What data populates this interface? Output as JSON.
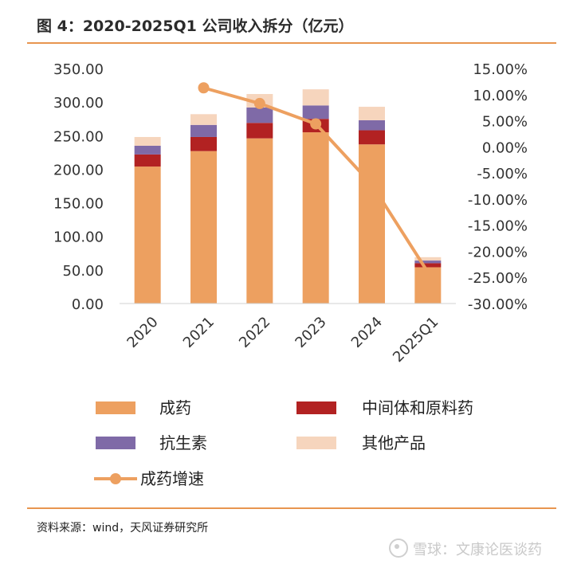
{
  "header": {
    "title": "图 4：2020-2025Q1 公司收入拆分（亿元）"
  },
  "footer": {
    "source": "资料来源：wind，天风证券研究所",
    "watermark": "雪球：文康论医谈药"
  },
  "colors": {
    "accent_rule": "#e8954f",
    "chengyao": "#eda060",
    "zhongjian": "#b22222",
    "kangshengsu": "#7f6aa7",
    "qita": "#f6d5bd",
    "growth_line": "#eda060"
  },
  "chart_data": {
    "type": "bar",
    "stacked": true,
    "categories": [
      "2020",
      "2021",
      "2022",
      "2023",
      "2024",
      "2025Q1"
    ],
    "series": [
      {
        "name": "成药",
        "type": "bar",
        "axis": "left",
        "color": "#eda060",
        "values": [
          204,
          227,
          246,
          255,
          237,
          54
        ]
      },
      {
        "name": "中间体和原料药",
        "type": "bar",
        "axis": "left",
        "color": "#b22222",
        "values": [
          18,
          21,
          23,
          20,
          21,
          6
        ]
      },
      {
        "name": "抗生素",
        "type": "bar",
        "axis": "left",
        "color": "#7f6aa7",
        "values": [
          13,
          18,
          23,
          20,
          15,
          4
        ]
      },
      {
        "name": "其他产品",
        "type": "bar",
        "axis": "left",
        "color": "#f6d5bd",
        "values": [
          13,
          16,
          20,
          24,
          20,
          5
        ]
      },
      {
        "name": "成药增速",
        "type": "line",
        "axis": "right",
        "color": "#eda060",
        "values": [
          null,
          11.3,
          8.3,
          4.4,
          -7.2,
          -24.0
        ]
      }
    ],
    "y_left": {
      "min": 0,
      "max": 350,
      "step": 50,
      "ticks": [
        "0.00",
        "50.00",
        "100.00",
        "150.00",
        "200.00",
        "250.00",
        "300.00",
        "350.00"
      ]
    },
    "y_right": {
      "min": -30,
      "max": 15,
      "step": 5,
      "ticks": [
        "-30.00%",
        "-25.00%",
        "-20.00%",
        "-15.00%",
        "-10.00%",
        "-5.00%",
        "0.00%",
        "5.00%",
        "10.00%",
        "15.00%"
      ]
    },
    "grid": false,
    "legend_position": "bottom",
    "legend": [
      "成药",
      "中间体和原料药",
      "抗生素",
      "其他产品",
      "成药增速"
    ]
  }
}
